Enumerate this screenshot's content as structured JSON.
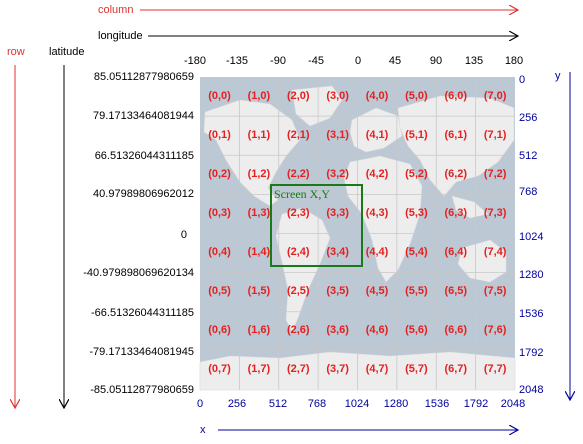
{
  "header": {
    "column_label": "column",
    "longitude_label": "longitude",
    "row_label": "row",
    "latitude_label": "latitude"
  },
  "longitude_ticks": [
    "-180",
    "-135",
    "-90",
    "-45",
    "0",
    "45",
    "90",
    "135",
    "180"
  ],
  "latitude_ticks": [
    "85.05112877980659",
    "79.17133464081944",
    "66.51326044311185",
    "40.97989806962012",
    "0",
    "-40.979898069620134",
    "-66.51326044311185",
    "-79.17133464081945",
    "-85.05112877980659"
  ],
  "pixel_y_label": "y",
  "pixel_y_ticks": [
    "0",
    "256",
    "512",
    "768",
    "1024",
    "1280",
    "1536",
    "1792",
    "2048"
  ],
  "pixel_x_label": "x",
  "pixel_x_ticks": [
    "0",
    "256",
    "512",
    "768",
    "1024",
    "1280",
    "1536",
    "1792",
    "2048"
  ],
  "tiles": [
    [
      "(0,0)",
      "(1,0)",
      "(2,0)",
      "(3,0)",
      "(4,0)",
      "(5,0)",
      "(6,0)",
      "(7,0)"
    ],
    [
      "(0,1)",
      "(1,1)",
      "(2,1)",
      "(3,1)",
      "(4,1)",
      "(5,1)",
      "(6,1)",
      "(7,1)"
    ],
    [
      "(0,2)",
      "(1,2)",
      "(2,2)",
      "(3,2)",
      "(4,2)",
      "(5,2)",
      "(6,2)",
      "(7,2)"
    ],
    [
      "(0,3)",
      "(1,3)",
      "(2,3)",
      "(3,3)",
      "(4,3)",
      "(5,3)",
      "(6,3)",
      "(7,3)"
    ],
    [
      "(0,4)",
      "(1,4)",
      "(2,4)",
      "(3,4)",
      "(4,4)",
      "(5,4)",
      "(6,4)",
      "(7,4)"
    ],
    [
      "(0,5)",
      "(1,5)",
      "(2,5)",
      "(3,5)",
      "(4,5)",
      "(5,5)",
      "(6,5)",
      "(7,5)"
    ],
    [
      "(0,6)",
      "(1,6)",
      "(2,6)",
      "(3,6)",
      "(4,6)",
      "(5,6)",
      "(6,6)",
      "(7,6)"
    ],
    [
      "(0,7)",
      "(1,7)",
      "(2,7)",
      "(3,7)",
      "(4,7)",
      "(5,7)",
      "(6,7)",
      "(7,7)"
    ]
  ],
  "screen_box": {
    "label": "Screen X,Y",
    "color": "#1a7a1a"
  },
  "colors": {
    "row_column_axis": "#e03030",
    "pixel_axis": "#00009c",
    "tile_label": "#e52020",
    "map_ocean": "#aebccb",
    "map_land": "#e8e8e8",
    "grid_line": "#c8c8c8"
  }
}
